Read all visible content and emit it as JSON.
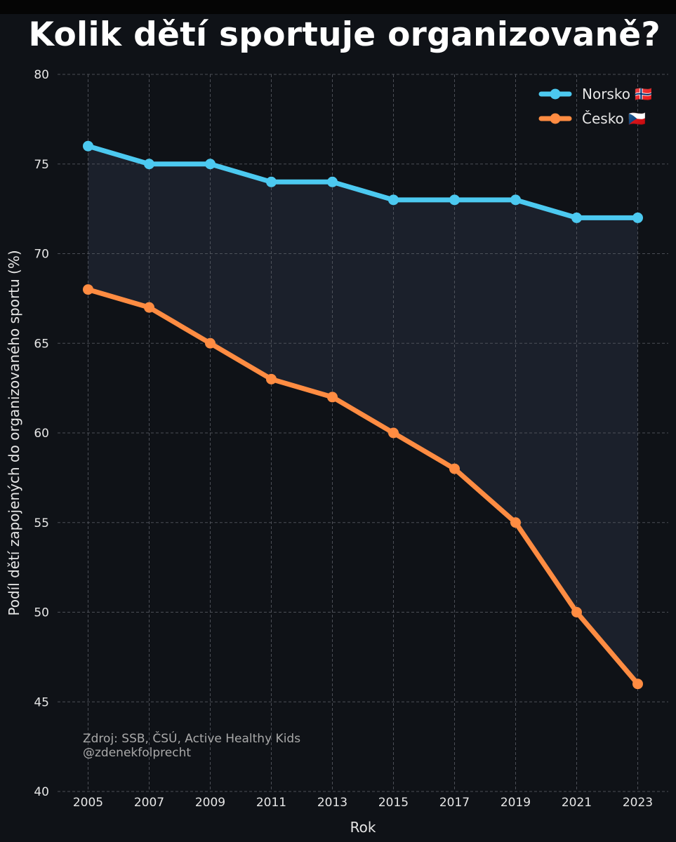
{
  "chart_data": {
    "type": "line",
    "title": "Kolik dětí sportuje organizovaně?",
    "xlabel": "Rok",
    "ylabel": "Podíl dětí zapojených do organizovaného sportu (%)",
    "x": [
      2005,
      2007,
      2009,
      2011,
      2013,
      2015,
      2017,
      2019,
      2021,
      2023
    ],
    "ylim": [
      40,
      80
    ],
    "yticks": [
      40,
      45,
      50,
      55,
      60,
      65,
      70,
      75,
      80
    ],
    "grid": true,
    "legend_position": "top-right",
    "fill_between": true,
    "series": [
      {
        "name": "Norsko 🇳🇴",
        "color": "#4cc9f0",
        "values": [
          76,
          75,
          75,
          74,
          74,
          73,
          73,
          73,
          72,
          72
        ]
      },
      {
        "name": "Česko 🇨🇿",
        "color": "#ff8c42",
        "values": [
          68,
          67,
          65,
          63,
          62,
          60,
          58,
          55,
          50,
          46
        ]
      }
    ],
    "annotation": {
      "source": "Zdroj: SSB, ČSÚ, Active Healthy Kids",
      "handle": "@zdenekfolprecht"
    }
  },
  "colors": {
    "background": "#0f1217",
    "fill": "#1b202b",
    "grid": "#5a5e66",
    "text": "#e6e6e6",
    "annotation": "#a9a9a9"
  }
}
